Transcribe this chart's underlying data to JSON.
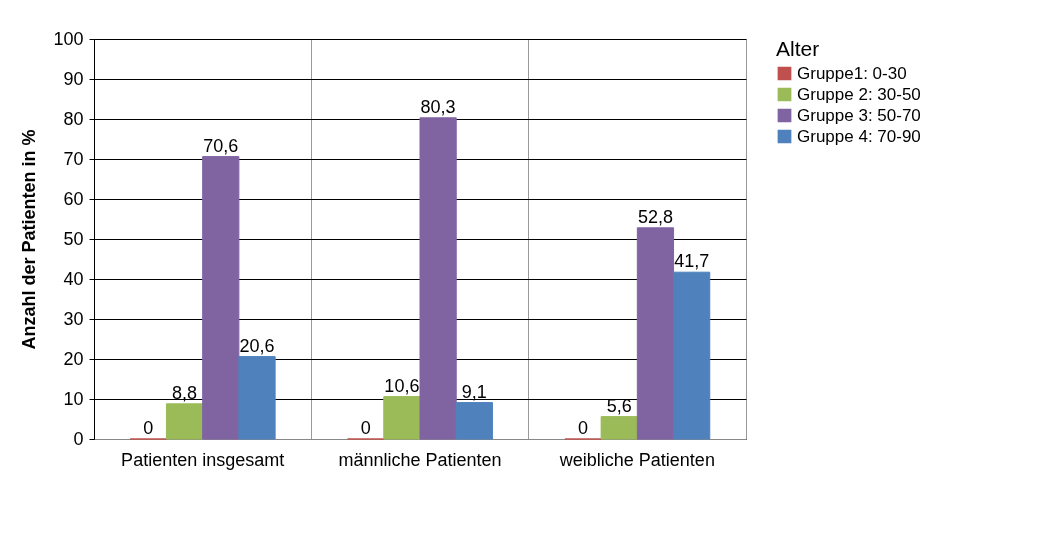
{
  "chart_data": {
    "type": "bar",
    "categories": [
      "Patienten insgesamt",
      "männliche Patienten",
      "weibliche Patienten"
    ],
    "ylabel": "Anzahl der Patienten in %",
    "legend_title": "Alter",
    "legend": "right",
    "grid": true,
    "ylim": [
      0,
      100
    ],
    "yticks": [
      0,
      10,
      20,
      30,
      40,
      50,
      60,
      70,
      80,
      90,
      100
    ],
    "series": [
      {
        "name": "Gruppe1: 0-30",
        "color": "#c0504d",
        "values": [
          0,
          0,
          0
        ],
        "value_labels": [
          "0",
          "0",
          "0"
        ]
      },
      {
        "name": "Gruppe 2: 30-50",
        "color": "#9bbb59",
        "values": [
          8.8,
          10.6,
          5.6
        ],
        "value_labels": [
          "8,8",
          "10,6",
          "5,6"
        ]
      },
      {
        "name": "Gruppe 3: 50-70",
        "color": "#8064a2",
        "values": [
          70.6,
          80.3,
          52.8
        ],
        "value_labels": [
          "70,6",
          "80,3",
          "52,8"
        ]
      },
      {
        "name": "Gruppe 4: 70-90",
        "color": "#4f81bd",
        "values": [
          20.6,
          9.1,
          41.7
        ],
        "value_labels": [
          "20,6",
          "9,1",
          "41,7"
        ]
      }
    ]
  }
}
